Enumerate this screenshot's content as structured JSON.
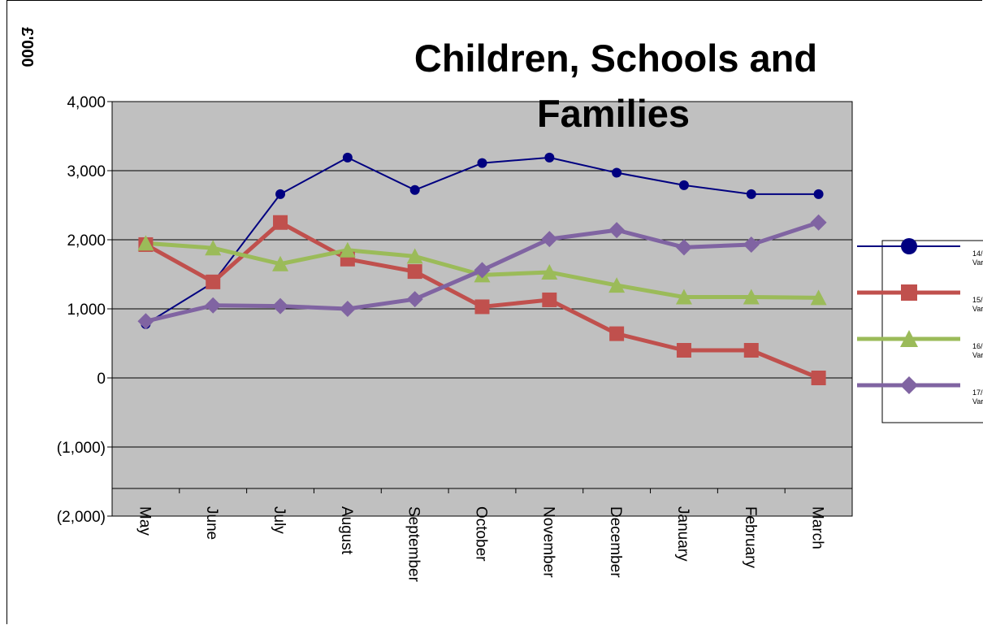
{
  "chart_data": {
    "type": "line",
    "title_line1": "Children, Schools and",
    "title_line2": "Families",
    "ylabel": "£'000",
    "xlabel": "",
    "ylim": [
      -2000,
      4000
    ],
    "yticks": [
      "(2,000)",
      "(1,000)",
      "0",
      "1,000",
      "2,000",
      "3,000",
      "4,000"
    ],
    "ytick_values": [
      -2000,
      -1000,
      0,
      1000,
      2000,
      3000,
      4000
    ],
    "categories": [
      "May",
      "June",
      "July",
      "August",
      "September",
      "October",
      "November",
      "December",
      "January",
      "February",
      "March"
    ],
    "grid": true,
    "legend_position": "right",
    "series": [
      {
        "name_line1": "14/",
        "name_line2": "Var",
        "color": "#000080",
        "marker": "circle",
        "values": [
          780,
          1380,
          2660,
          3190,
          2720,
          3110,
          3190,
          2970,
          2790,
          2660,
          2660
        ]
      },
      {
        "name_line1": "15/",
        "name_line2": "Var",
        "color": "#C0504D",
        "marker": "square",
        "values": [
          1930,
          1390,
          2250,
          1720,
          1540,
          1030,
          1130,
          640,
          400,
          400,
          0
        ]
      },
      {
        "name_line1": "16/",
        "name_line2": "Var",
        "color": "#9BBB59",
        "marker": "triangle",
        "values": [
          1950,
          1880,
          1650,
          1850,
          1760,
          1490,
          1530,
          1340,
          1170,
          1170,
          1160
        ]
      },
      {
        "name_line1": "17/",
        "name_line2": "Var",
        "color": "#8064A2",
        "marker": "diamond",
        "values": [
          820,
          1050,
          1040,
          1000,
          1140,
          1560,
          2010,
          2140,
          1890,
          1930,
          2250
        ]
      }
    ]
  }
}
